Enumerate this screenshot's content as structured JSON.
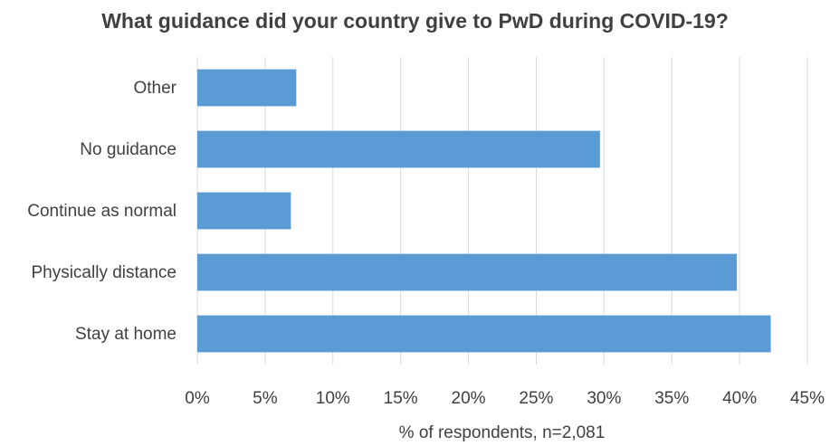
{
  "chart_data": {
    "type": "bar",
    "orientation": "horizontal",
    "title": "What guidance did your country give to PwD during COVID-19?",
    "xlabel": "% of respondents, n=2,081",
    "ylabel": "",
    "categories": [
      "Other",
      "No guidance",
      "Continue as normal",
      "Physically distance",
      "Stay at home"
    ],
    "values": [
      7.3,
      29.7,
      6.9,
      39.8,
      42.3
    ],
    "xlim": [
      0,
      45
    ],
    "x_ticks": [
      0,
      5,
      10,
      15,
      20,
      25,
      30,
      35,
      40,
      45
    ],
    "x_tick_labels": [
      "0%",
      "5%",
      "10%",
      "15%",
      "20%",
      "25%",
      "30%",
      "35%",
      "40%",
      "45%"
    ],
    "grid": "vertical",
    "legend": "none",
    "bar_color": "#5B9BD5",
    "grid_color": "#D9D9D9"
  }
}
